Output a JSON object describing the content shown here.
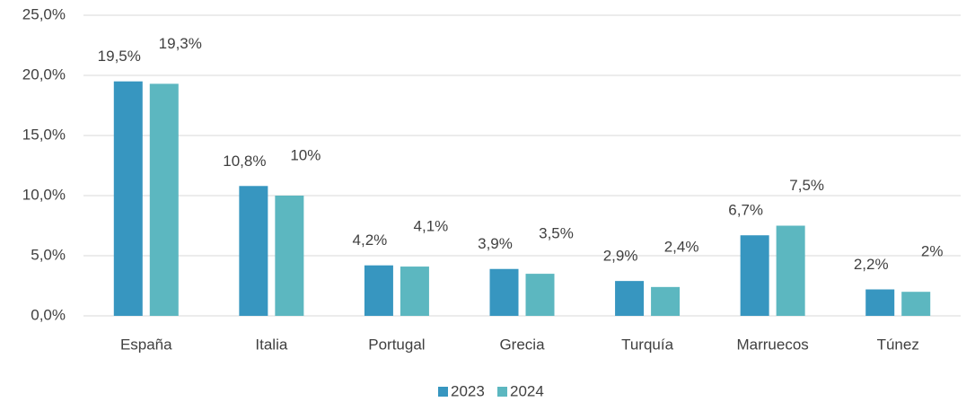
{
  "chart_data": {
    "type": "bar",
    "categories": [
      "España",
      "Italia",
      "Portugal",
      "Grecia",
      "Turquía",
      "Marruecos",
      "Túnez"
    ],
    "series": [
      {
        "name": "2023",
        "color": "#3796c0",
        "values": [
          19.5,
          10.8,
          4.2,
          3.9,
          2.9,
          6.7,
          2.2
        ],
        "value_labels": [
          "19,5%",
          "10,8%",
          "4,2%",
          "3,9%",
          "2,9%",
          "6,7%",
          "2,2%"
        ]
      },
      {
        "name": "2024",
        "color": "#5cb7c0",
        "values": [
          19.3,
          10,
          4.1,
          3.5,
          2.4,
          7.5,
          2
        ],
        "value_labels": [
          "19,3%",
          "10%",
          "4,1%",
          "3,5%",
          "2,4%",
          "7,5%",
          "2%"
        ]
      }
    ],
    "ylim": [
      0,
      25
    ],
    "yticks": [
      {
        "value": 0,
        "label": "0,0%"
      },
      {
        "value": 5,
        "label": "5,0%"
      },
      {
        "value": 10,
        "label": "10,0%"
      },
      {
        "value": 15,
        "label": "15,0%"
      },
      {
        "value": 20,
        "label": "20,0%"
      },
      {
        "value": 25,
        "label": "25,0%"
      }
    ],
    "grid": true,
    "legend": "bottom"
  }
}
